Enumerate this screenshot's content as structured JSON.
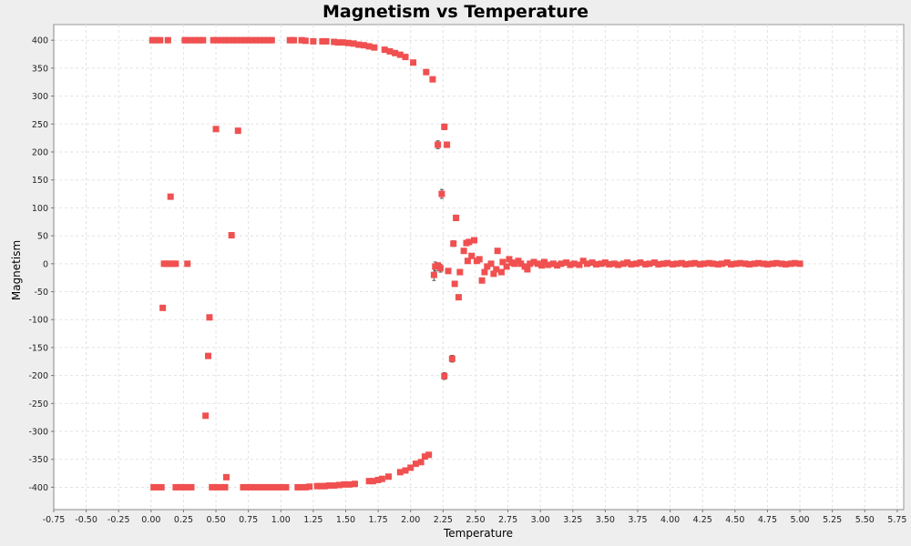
{
  "chart_data": {
    "type": "scatter",
    "title": "Magnetism vs Temperature",
    "xlabel": "Temperature",
    "ylabel": "Magnetism",
    "xlim": [
      -0.75,
      5.8
    ],
    "ylim": [
      -440,
      428
    ],
    "x_ticks": [
      "-0.75",
      "-0.50",
      "-0.25",
      "0.00",
      "0.25",
      "0.50",
      "0.75",
      "1.00",
      "1.25",
      "1.50",
      "1.75",
      "2.00",
      "2.25",
      "2.50",
      "2.75",
      "3.00",
      "3.25",
      "3.50",
      "3.75",
      "4.00",
      "4.25",
      "4.50",
      "4.75",
      "5.00",
      "5.25",
      "5.50",
      "5.75"
    ],
    "y_ticks": [
      "-400",
      "-350",
      "-300",
      "-250",
      "-200",
      "-150",
      "-100",
      "-50",
      "0",
      "50",
      "100",
      "150",
      "200",
      "250",
      "300",
      "350",
      "400"
    ],
    "grid": true,
    "marker_color": "#f05050",
    "series": [
      {
        "points": [
          [
            0.01,
            400
          ],
          [
            0.04,
            400
          ],
          [
            0.07,
            400
          ],
          [
            0.13,
            400
          ],
          [
            0.26,
            400
          ],
          [
            0.28,
            400
          ],
          [
            0.31,
            400
          ],
          [
            0.34,
            400
          ],
          [
            0.37,
            400
          ],
          [
            0.4,
            400
          ],
          [
            0.48,
            400
          ],
          [
            0.51,
            400
          ],
          [
            0.54,
            400
          ],
          [
            0.57,
            400
          ],
          [
            0.6,
            400
          ],
          [
            0.63,
            400
          ],
          [
            0.66,
            400
          ],
          [
            0.69,
            400
          ],
          [
            0.72,
            400
          ],
          [
            0.75,
            400
          ],
          [
            0.78,
            400
          ],
          [
            0.81,
            400
          ],
          [
            0.84,
            400
          ],
          [
            0.87,
            400
          ],
          [
            0.9,
            400
          ],
          [
            0.93,
            400
          ],
          [
            1.07,
            400
          ],
          [
            1.1,
            400
          ],
          [
            1.16,
            400
          ],
          [
            1.19,
            399
          ],
          [
            1.25,
            398
          ],
          [
            1.32,
            398
          ],
          [
            1.35,
            398
          ],
          [
            1.41,
            397
          ],
          [
            1.44,
            396
          ],
          [
            1.48,
            396
          ],
          [
            1.52,
            395
          ],
          [
            1.56,
            394
          ],
          [
            1.6,
            392
          ],
          [
            1.64,
            391
          ],
          [
            1.68,
            389
          ],
          [
            1.72,
            387
          ],
          [
            1.8,
            383
          ],
          [
            1.84,
            380
          ],
          [
            1.88,
            377
          ],
          [
            1.92,
            374
          ],
          [
            1.96,
            370
          ],
          [
            2.02,
            360
          ],
          [
            2.12,
            343
          ],
          [
            2.17,
            330
          ],
          [
            2.21,
            213
          ],
          [
            2.26,
            245
          ],
          [
            2.28,
            213
          ],
          [
            2.24,
            125
          ],
          [
            2.35,
            82
          ],
          [
            2.33,
            36
          ],
          [
            2.41,
            23
          ],
          [
            2.43,
            37
          ],
          [
            2.45,
            39
          ],
          [
            2.49,
            42
          ],
          [
            2.51,
            5
          ],
          [
            2.47,
            14
          ],
          [
            2.53,
            8
          ],
          [
            2.18,
            -20
          ],
          [
            2.19,
            -5
          ],
          [
            2.21,
            -3
          ],
          [
            2.23,
            -8
          ],
          [
            2.29,
            -13
          ],
          [
            2.34,
            -36
          ],
          [
            2.38,
            -15
          ],
          [
            2.37,
            -60
          ],
          [
            2.44,
            5
          ],
          [
            2.55,
            -30
          ],
          [
            2.57,
            -15
          ],
          [
            2.59,
            -5
          ],
          [
            2.62,
            0
          ],
          [
            2.64,
            -18
          ],
          [
            2.66,
            -10
          ],
          [
            2.67,
            23
          ],
          [
            2.7,
            -15
          ],
          [
            2.71,
            3
          ],
          [
            2.74,
            -5
          ],
          [
            2.76,
            8
          ],
          [
            2.78,
            2
          ],
          [
            2.8,
            0
          ],
          [
            2.83,
            5
          ],
          [
            2.85,
            0
          ],
          [
            2.88,
            -5
          ],
          [
            2.9,
            -10
          ],
          [
            2.92,
            0
          ],
          [
            2.95,
            3
          ],
          [
            2.98,
            0
          ],
          [
            3.01,
            -3
          ],
          [
            3.03,
            3
          ],
          [
            3.06,
            -2
          ],
          [
            3.1,
            0
          ],
          [
            3.13,
            -3
          ],
          [
            3.16,
            0
          ],
          [
            3.2,
            2
          ],
          [
            3.23,
            -2
          ],
          [
            3.26,
            0
          ],
          [
            3.3,
            -2
          ],
          [
            3.33,
            5
          ],
          [
            3.36,
            0
          ],
          [
            3.4,
            2
          ],
          [
            3.43,
            -1
          ],
          [
            3.47,
            0
          ],
          [
            3.5,
            2
          ],
          [
            3.53,
            -1
          ],
          [
            3.57,
            0
          ],
          [
            3.6,
            -2
          ],
          [
            3.64,
            0
          ],
          [
            3.67,
            2
          ],
          [
            3.7,
            -1
          ],
          [
            3.74,
            0
          ],
          [
            3.77,
            2
          ],
          [
            3.81,
            -1
          ],
          [
            3.84,
            0
          ],
          [
            3.88,
            2
          ],
          [
            3.91,
            -1
          ],
          [
            3.95,
            0
          ],
          [
            3.98,
            1
          ],
          [
            4.02,
            -1
          ],
          [
            4.05,
            0
          ],
          [
            4.09,
            1
          ],
          [
            4.12,
            -1
          ],
          [
            4.16,
            0
          ],
          [
            4.19,
            1
          ],
          [
            4.23,
            -1
          ],
          [
            4.26,
            0
          ],
          [
            4.3,
            1
          ],
          [
            4.33,
            0
          ],
          [
            4.37,
            -1
          ],
          [
            4.4,
            0
          ],
          [
            4.44,
            2
          ],
          [
            4.47,
            -1
          ],
          [
            4.51,
            0
          ],
          [
            4.54,
            1
          ],
          [
            4.58,
            0
          ],
          [
            4.61,
            -1
          ],
          [
            4.65,
            0
          ],
          [
            4.68,
            1
          ],
          [
            4.72,
            0
          ],
          [
            4.75,
            -1
          ],
          [
            4.79,
            0
          ],
          [
            4.82,
            1
          ],
          [
            4.86,
            0
          ],
          [
            4.89,
            -1
          ],
          [
            4.93,
            0
          ],
          [
            4.96,
            1
          ],
          [
            5.0,
            0
          ],
          [
            0.1,
            0
          ],
          [
            0.12,
            0
          ],
          [
            0.14,
            0
          ],
          [
            0.17,
            0
          ],
          [
            0.19,
            0
          ],
          [
            0.28,
            0
          ],
          [
            0.09,
            -79
          ],
          [
            0.15,
            120
          ],
          [
            0.5,
            241
          ],
          [
            0.67,
            238
          ],
          [
            0.62,
            51
          ],
          [
            0.45,
            -96
          ],
          [
            0.44,
            -165
          ],
          [
            0.42,
            -272
          ],
          [
            0.58,
            -382
          ],
          [
            2.26,
            -201
          ],
          [
            2.32,
            -170
          ],
          [
            0.02,
            -400
          ],
          [
            0.05,
            -400
          ],
          [
            0.08,
            -400
          ],
          [
            0.19,
            -400
          ],
          [
            0.22,
            -400
          ],
          [
            0.25,
            -400
          ],
          [
            0.28,
            -400
          ],
          [
            0.31,
            -400
          ],
          [
            0.47,
            -400
          ],
          [
            0.5,
            -400
          ],
          [
            0.54,
            -400
          ],
          [
            0.57,
            -400
          ],
          [
            0.71,
            -400
          ],
          [
            0.74,
            -400
          ],
          [
            0.77,
            -400
          ],
          [
            0.8,
            -400
          ],
          [
            0.83,
            -400
          ],
          [
            0.86,
            -400
          ],
          [
            0.89,
            -400
          ],
          [
            0.92,
            -400
          ],
          [
            0.95,
            -400
          ],
          [
            0.98,
            -400
          ],
          [
            1.01,
            -400
          ],
          [
            1.04,
            -400
          ],
          [
            1.13,
            -400
          ],
          [
            1.16,
            -400
          ],
          [
            1.19,
            -400
          ],
          [
            1.22,
            -399
          ],
          [
            1.28,
            -398
          ],
          [
            1.31,
            -398
          ],
          [
            1.34,
            -398
          ],
          [
            1.37,
            -397
          ],
          [
            1.41,
            -397
          ],
          [
            1.45,
            -396
          ],
          [
            1.49,
            -395
          ],
          [
            1.53,
            -395
          ],
          [
            1.57,
            -394
          ],
          [
            1.68,
            -389
          ],
          [
            1.71,
            -389
          ],
          [
            1.75,
            -387
          ],
          [
            1.78,
            -385
          ],
          [
            1.83,
            -381
          ],
          [
            1.92,
            -373
          ],
          [
            1.96,
            -370
          ],
          [
            2.0,
            -365
          ],
          [
            2.04,
            -358
          ],
          [
            2.08,
            -355
          ],
          [
            2.11,
            -345
          ],
          [
            2.14,
            -342
          ]
        ],
        "error_bars": [
          [
            2.18,
            -20,
            10
          ],
          [
            2.21,
            213,
            7
          ],
          [
            2.24,
            125,
            8
          ],
          [
            2.26,
            245,
            5
          ],
          [
            2.28,
            213,
            5
          ],
          [
            2.35,
            82,
            5
          ],
          [
            2.33,
            36,
            5
          ],
          [
            2.26,
            -201,
            6
          ],
          [
            2.32,
            -170,
            6
          ],
          [
            2.19,
            -5,
            8
          ],
          [
            2.23,
            -8,
            7
          ]
        ]
      }
    ]
  }
}
